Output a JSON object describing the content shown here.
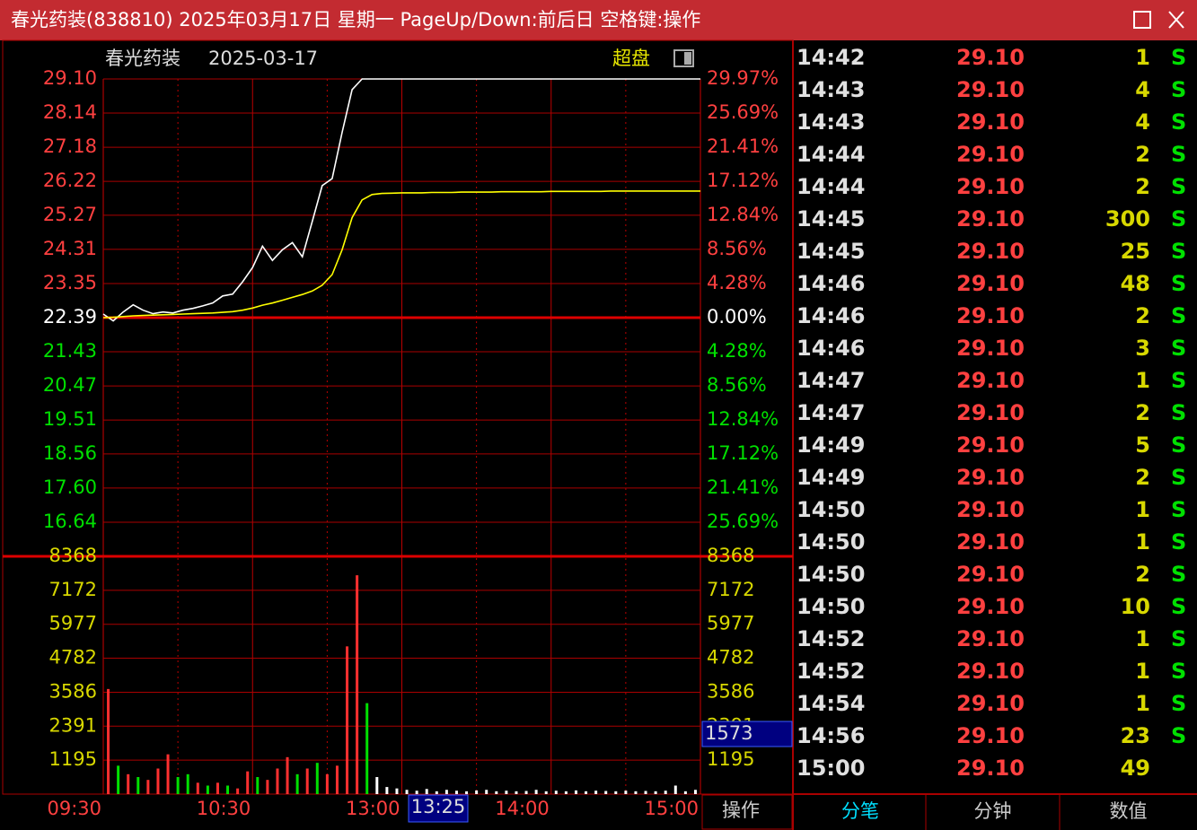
{
  "window": {
    "title": "春光药装(838810) 2025年03月17日 星期一 PageUp/Down:前后日 空格键:操作"
  },
  "chart_data": {
    "type": "line",
    "title": "春光药装",
    "subtitle": "2025-03-17",
    "mode_label": "超盘",
    "x_labels": [
      "09:30",
      "10:30",
      "13:00",
      "14:00",
      "15:00"
    ],
    "series": [
      {
        "color": "#ffffff",
        "values": [
          22.49,
          22.3,
          22.55,
          22.75,
          22.6,
          22.5,
          22.55,
          22.52,
          22.6,
          22.65,
          22.72,
          22.8,
          23.0,
          23.05,
          23.4,
          23.8,
          24.4,
          24.0,
          24.3,
          24.5,
          24.1,
          25.1,
          26.1,
          26.3,
          27.6,
          28.8,
          29.1,
          29.1,
          29.1,
          29.1,
          29.1,
          29.1,
          29.1,
          29.1,
          29.1,
          29.1,
          29.1,
          29.1,
          29.1,
          29.1,
          29.1,
          29.1,
          29.1,
          29.1,
          29.1,
          29.1,
          29.1,
          29.1,
          29.1,
          29.1,
          29.1,
          29.1,
          29.1,
          29.1,
          29.1,
          29.1,
          29.1,
          29.1,
          29.1,
          29.1,
          29.1
        ]
      },
      {
        "color": "#ffff00",
        "values": [
          22.39,
          22.4,
          22.42,
          22.44,
          22.45,
          22.46,
          22.47,
          22.48,
          22.49,
          22.5,
          22.51,
          22.52,
          22.54,
          22.56,
          22.6,
          22.66,
          22.74,
          22.8,
          22.88,
          22.96,
          23.04,
          23.14,
          23.3,
          23.6,
          24.3,
          25.2,
          25.7,
          25.85,
          25.88,
          25.89,
          25.9,
          25.9,
          25.9,
          25.91,
          25.91,
          25.91,
          25.92,
          25.92,
          25.92,
          25.92,
          25.93,
          25.93,
          25.93,
          25.93,
          25.93,
          25.94,
          25.94,
          25.94,
          25.94,
          25.94,
          25.94,
          25.95,
          25.95,
          25.95,
          25.95,
          25.95,
          25.95,
          25.95,
          25.95,
          25.95,
          25.95
        ]
      }
    ],
    "ylim": [
      15.68,
      29.1
    ],
    "yticks": [
      {
        "value": 29.1,
        "label": "29.10"
      },
      28.14,
      27.18,
      26.22,
      25.27,
      24.31,
      23.35,
      22.39,
      21.43,
      20.47,
      19.51,
      18.56,
      {
        "value": 17.6,
        "label": "17.60"
      },
      16.64
    ],
    "pct_labels": [
      "29.97%",
      "25.69%",
      "21.41%",
      "17.12%",
      "12.84%",
      "8.56%",
      "4.28%",
      "0.00%",
      "4.28%",
      "8.56%",
      "12.84%",
      "17.12%",
      "21.41%",
      "25.69%"
    ],
    "volume": {
      "values": [
        3700,
        1000,
        700,
        600,
        500,
        900,
        1400,
        600,
        700,
        400,
        300,
        400,
        300,
        200,
        800,
        600,
        500,
        900,
        1300,
        700,
        900,
        1100,
        700,
        1000,
        5200,
        7700,
        3200,
        600,
        250,
        200,
        150,
        120,
        180,
        100,
        150,
        120,
        100,
        130,
        150,
        100,
        120,
        100,
        110,
        150,
        100,
        120,
        100,
        130,
        100,
        120,
        110,
        100,
        120,
        100,
        110,
        100,
        120,
        300,
        100,
        150
      ],
      "colors": [
        "#ff3030",
        "#00e000",
        "#ff3030",
        "#00e000",
        "#ff3030",
        "#ff3030",
        "#ff3030",
        "#00e000",
        "#00e000",
        "#ff3030",
        "#00e000",
        "#ff3030",
        "#00e000",
        "#ff3030",
        "#ff3030",
        "#00e000",
        "#ff3030",
        "#ff3030",
        "#ff3030",
        "#00e000",
        "#ff3030",
        "#00e000",
        "#ff3030",
        "#ff3030",
        "#ff3030",
        "#ff3030",
        "#00e000",
        "#ffffff",
        "#ffffff",
        "#ffffff",
        "#ffffff",
        "#ffffff",
        "#ffffff",
        "#ffffff",
        "#ffffff",
        "#ffffff",
        "#ffffff",
        "#ffffff",
        "#ffffff",
        "#ffffff",
        "#ffffff",
        "#ffffff",
        "#ffffff",
        "#ffffff",
        "#ffffff",
        "#ffffff",
        "#ffffff",
        "#ffffff",
        "#ffffff",
        "#ffffff",
        "#ffffff",
        "#ffffff",
        "#ffffff",
        "#ffffff",
        "#ffffff",
        "#ffffff",
        "#ffffff",
        "#ffffff",
        "#ffffff",
        "#ffffff"
      ],
      "ylim": [
        0,
        8368
      ],
      "yticks": [
        8368,
        7172,
        5977,
        4782,
        3586,
        2391,
        1195
      ]
    },
    "cursor": {
      "time": "13:25",
      "volume": 1573
    }
  },
  "action_button": "操作",
  "trades": {
    "rows": [
      [
        "14:42",
        "29.10",
        "1",
        "S"
      ],
      [
        "14:43",
        "29.10",
        "4",
        "S"
      ],
      [
        "14:43",
        "29.10",
        "4",
        "S"
      ],
      [
        "14:44",
        "29.10",
        "2",
        "S"
      ],
      [
        "14:44",
        "29.10",
        "2",
        "S"
      ],
      [
        "14:45",
        "29.10",
        "300",
        "S"
      ],
      [
        "14:45",
        "29.10",
        "25",
        "S"
      ],
      [
        "14:46",
        "29.10",
        "48",
        "S"
      ],
      [
        "14:46",
        "29.10",
        "2",
        "S"
      ],
      [
        "14:46",
        "29.10",
        "3",
        "S"
      ],
      [
        "14:47",
        "29.10",
        "1",
        "S"
      ],
      [
        "14:47",
        "29.10",
        "2",
        "S"
      ],
      [
        "14:49",
        "29.10",
        "5",
        "S"
      ],
      [
        "14:49",
        "29.10",
        "2",
        "S"
      ],
      [
        "14:50",
        "29.10",
        "1",
        "S"
      ],
      [
        "14:50",
        "29.10",
        "1",
        "S"
      ],
      [
        "14:50",
        "29.10",
        "2",
        "S"
      ],
      [
        "14:50",
        "29.10",
        "10",
        "S"
      ],
      [
        "14:52",
        "29.10",
        "1",
        "S"
      ],
      [
        "14:52",
        "29.10",
        "1",
        "S"
      ],
      [
        "14:54",
        "29.10",
        "1",
        "S"
      ],
      [
        "14:56",
        "29.10",
        "23",
        "S"
      ],
      [
        "15:00",
        "29.10",
        "49"
      ]
    ]
  },
  "tabs": [
    "分笔",
    "分钟",
    "数值"
  ]
}
